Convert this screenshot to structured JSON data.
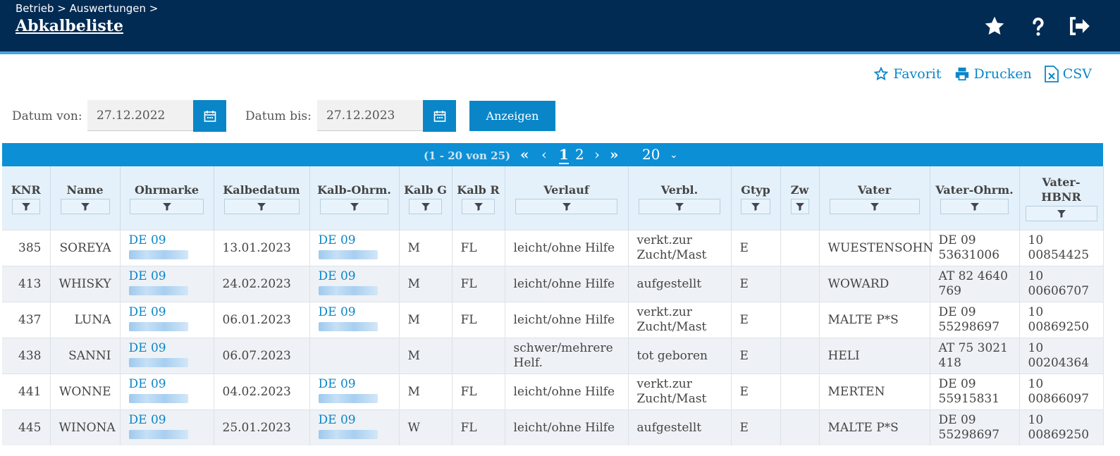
{
  "header": {
    "breadcrumb": "Betrieb > Auswertungen >",
    "title": "Abkalbeliste"
  },
  "actions": {
    "favorite": "Favorit",
    "print": "Drucken",
    "csv": "CSV"
  },
  "filters": {
    "from_label": "Datum von:",
    "from_value": "27.12.2022",
    "to_label": "Datum bis:",
    "to_value": "27.12.2023",
    "show_button": "Anzeigen"
  },
  "pager": {
    "range": "(1 - 20 von 25)",
    "page1": "1",
    "page2": "2",
    "page_size": "20"
  },
  "columns": [
    "KNR",
    "Name",
    "Ohrmarke",
    "Kalbedatum",
    "Kalb-Ohrm.",
    "Kalb G",
    "Kalb R",
    "Verlauf",
    "Verbl.",
    "Gtyp",
    "Zw",
    "Vater",
    "Vater-Ohrm.",
    "Vater-HBNR"
  ],
  "rows": [
    {
      "knr": "385",
      "name": "SOREYA",
      "ohrmarke": "DE 09",
      "datum": "13.01.2023",
      "kalb_ohrm": "DE 09",
      "g": "M",
      "r": "FL",
      "verlauf": "leicht/ohne Hilfe",
      "verbl": "verkt.zur Zucht/Mast",
      "gtyp": "E",
      "zw": "",
      "vater": "WUESTENSOHN",
      "vater_ohrm": "DE 09 53631006",
      "hbnr": "10 00854425"
    },
    {
      "knr": "413",
      "name": "WHISKY",
      "ohrmarke": "DE 09",
      "datum": "24.02.2023",
      "kalb_ohrm": "DE 09",
      "g": "M",
      "r": "FL",
      "verlauf": "leicht/ohne Hilfe",
      "verbl": "aufgestellt",
      "gtyp": "E",
      "zw": "",
      "vater": "WOWARD",
      "vater_ohrm": "AT 82 4640 769",
      "hbnr": "10 00606707"
    },
    {
      "knr": "437",
      "name": "LUNA",
      "ohrmarke": "DE 09",
      "datum": "06.01.2023",
      "kalb_ohrm": "DE 09",
      "g": "M",
      "r": "FL",
      "verlauf": "leicht/ohne Hilfe",
      "verbl": "verkt.zur Zucht/Mast",
      "gtyp": "E",
      "zw": "",
      "vater": "MALTE P*S",
      "vater_ohrm": "DE 09 55298697",
      "hbnr": "10 00869250"
    },
    {
      "knr": "438",
      "name": "SANNI",
      "ohrmarke": "DE 09",
      "datum": "06.07.2023",
      "kalb_ohrm": "",
      "g": "M",
      "r": "",
      "verlauf": "schwer/mehrere Helf.",
      "verbl": "tot geboren",
      "gtyp": "E",
      "zw": "",
      "vater": "HELI",
      "vater_ohrm": "AT 75 3021 418",
      "hbnr": "10 00204364"
    },
    {
      "knr": "441",
      "name": "WONNE",
      "ohrmarke": "DE 09",
      "datum": "04.02.2023",
      "kalb_ohrm": "DE 09",
      "g": "M",
      "r": "FL",
      "verlauf": "leicht/ohne Hilfe",
      "verbl": "verkt.zur Zucht/Mast",
      "gtyp": "E",
      "zw": "",
      "vater": "MERTEN",
      "vater_ohrm": "DE 09 55915831",
      "hbnr": "10 00866097"
    },
    {
      "knr": "445",
      "name": "WINONA",
      "ohrmarke": "DE 09",
      "datum": "25.01.2023",
      "kalb_ohrm": "DE 09",
      "g": "W",
      "r": "FL",
      "verlauf": "leicht/ohne Hilfe",
      "verbl": "aufgestellt",
      "gtyp": "E",
      "zw": "",
      "vater": "MALTE P*S",
      "vater_ohrm": "DE 09 55298697",
      "hbnr": "10 00869250"
    }
  ],
  "colors": {
    "header_bg": "#022b54",
    "accent": "#0a86c8",
    "pager_bg": "#0d8fd6",
    "table_header_bg": "#e4f1fa"
  }
}
